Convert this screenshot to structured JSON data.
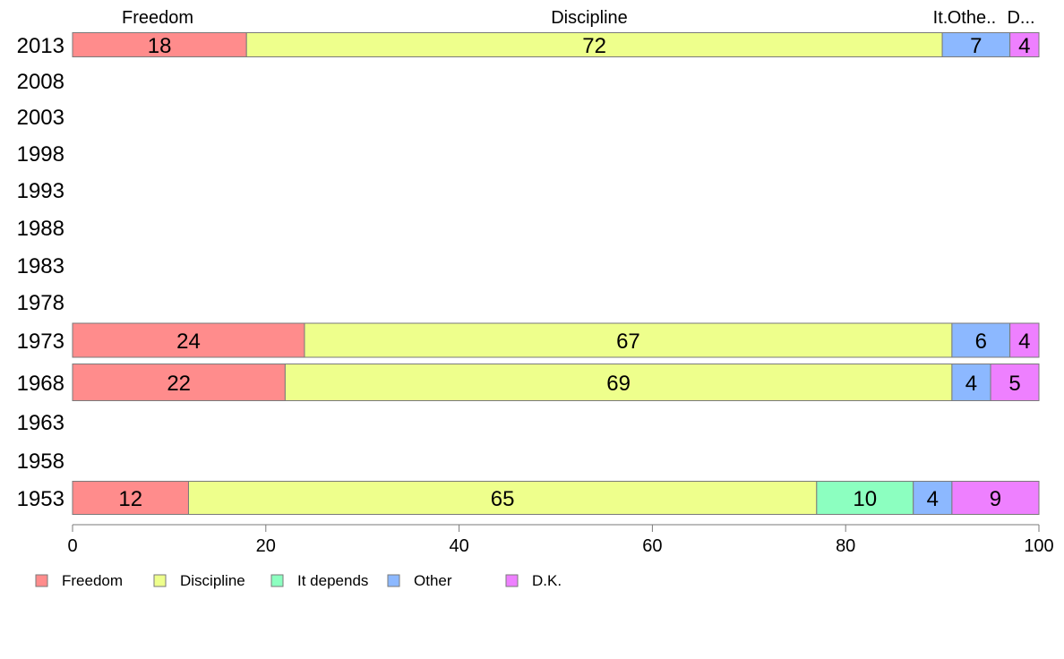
{
  "chart_data": {
    "type": "bar",
    "orientation": "horizontal",
    "stacked": true,
    "categories": [
      "2013",
      "2008",
      "2003",
      "1998",
      "1993",
      "1988",
      "1983",
      "1978",
      "1973",
      "1968",
      "1963",
      "1958",
      "1953"
    ],
    "series": [
      {
        "name": "Freedom",
        "color": "#ff8c8c",
        "values": [
          18,
          null,
          null,
          null,
          null,
          null,
          null,
          null,
          24,
          22,
          null,
          null,
          12
        ]
      },
      {
        "name": "Discipline",
        "color": "#eeff8c",
        "values": [
          72,
          null,
          null,
          null,
          null,
          null,
          null,
          null,
          67,
          69,
          null,
          null,
          65
        ]
      },
      {
        "name": "It depends",
        "color": "#8cffc0",
        "values": [
          0,
          null,
          null,
          null,
          null,
          null,
          null,
          null,
          0,
          0,
          null,
          null,
          10
        ]
      },
      {
        "name": "Other",
        "color": "#8cb8ff",
        "values": [
          7,
          null,
          null,
          null,
          null,
          null,
          null,
          null,
          6,
          4,
          null,
          null,
          4
        ]
      },
      {
        "name": "D.K.",
        "color": "#ee80ff",
        "values": [
          4,
          null,
          null,
          null,
          null,
          null,
          null,
          null,
          4,
          5,
          null,
          null,
          9
        ]
      }
    ],
    "top_labels": [
      "Freedom",
      "Discipline",
      "It.",
      "Othe..",
      "D..."
    ],
    "xlim": [
      0,
      100
    ],
    "xticks": [
      0,
      20,
      40,
      60,
      80,
      100
    ],
    "grid": false,
    "legend_position": "bottom"
  }
}
